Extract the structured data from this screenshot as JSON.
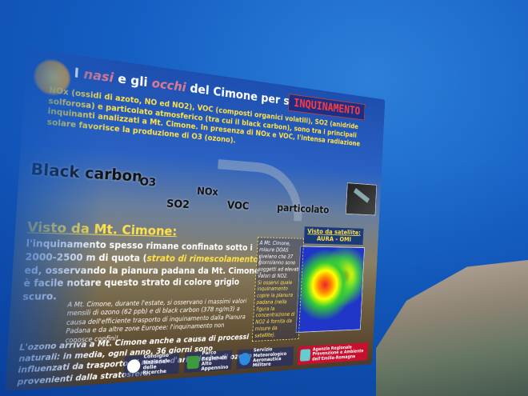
{
  "title": {
    "prefix": "I",
    "word1": "nasi",
    "middle": "e gli",
    "word2": "occhi",
    "suffix": "del Cimone per studiare l'",
    "highlight": "INQUINAMENTO"
  },
  "intro": "NOx (ossidi di azoto, NO ed NO2), VOC (composti organici volatili), SO2 (anidride solforosa) e particolato atmosferico (tra cui il black carbon), sono tra i principali inquinanti analizzati a Mt. Cimone. In presenza di NOx e VOC, l'intensa radiazione solare favorisce la produzione di O3 (ozono).",
  "pollutants": {
    "black_carbon": "Black carbon",
    "o3": "O3",
    "so2": "SO2",
    "nox": "NOx",
    "voc": "VOC",
    "particolato": "particolato"
  },
  "section": {
    "heading": "Visto da Mt. Cimone:",
    "body_1": "l'inquinamento spesso rimane confinato sotto i 2000-2500 m di quota (",
    "body_italic": "strato di rimescolamento",
    "body_2": ") ed, osservando la pianura padana da Mt. Cimone, è facile notare questo strato di colore grigio scuro."
  },
  "note": "A Mt. Cimone, durante l'estate, si osservano i massimi valori mensili di ozono (62 ppb) e di black carbon (378 ng/m3) a causa dell'efficiente trasporto di inquinamento dalla Pianura Padana e da altre zone Europee: l'inquinamento non conosce confini!",
  "ozone": "L'ozono arriva a Mt. Cimone anche a causa di processi naturali: in media, ogni anno, 36 giorni sono influenzati da trasporto di masse d'aria ricche di ozono provenienti dalla stratosfera.",
  "satellite": {
    "label_line1": "Visto da satellite:",
    "label_line2": "AURA - OMI",
    "note_1": "A Mt. Cimone, misure DOAS rivelano che 37 giorni/anno sono soggetti ad elevati valori di NO2.",
    "note_2": "Si osservi quale inquinamento copre la pianura padana (nella figura la concentrazione di NO2 è fornita da misure da satellite)."
  },
  "logos": [
    {
      "name": "Consiglio Nazionale delle Ricerche",
      "mark": "white"
    },
    {
      "name": "Parco Regionale Alto Appennino",
      "mark": "green"
    },
    {
      "name": "Servizio Meteorologico Aeronautica Militare",
      "mark": "blue"
    },
    {
      "name": "Agenzia Regionale Prevenzione e Ambiente dell'Emilia-Romagna",
      "mark": "teal"
    }
  ]
}
